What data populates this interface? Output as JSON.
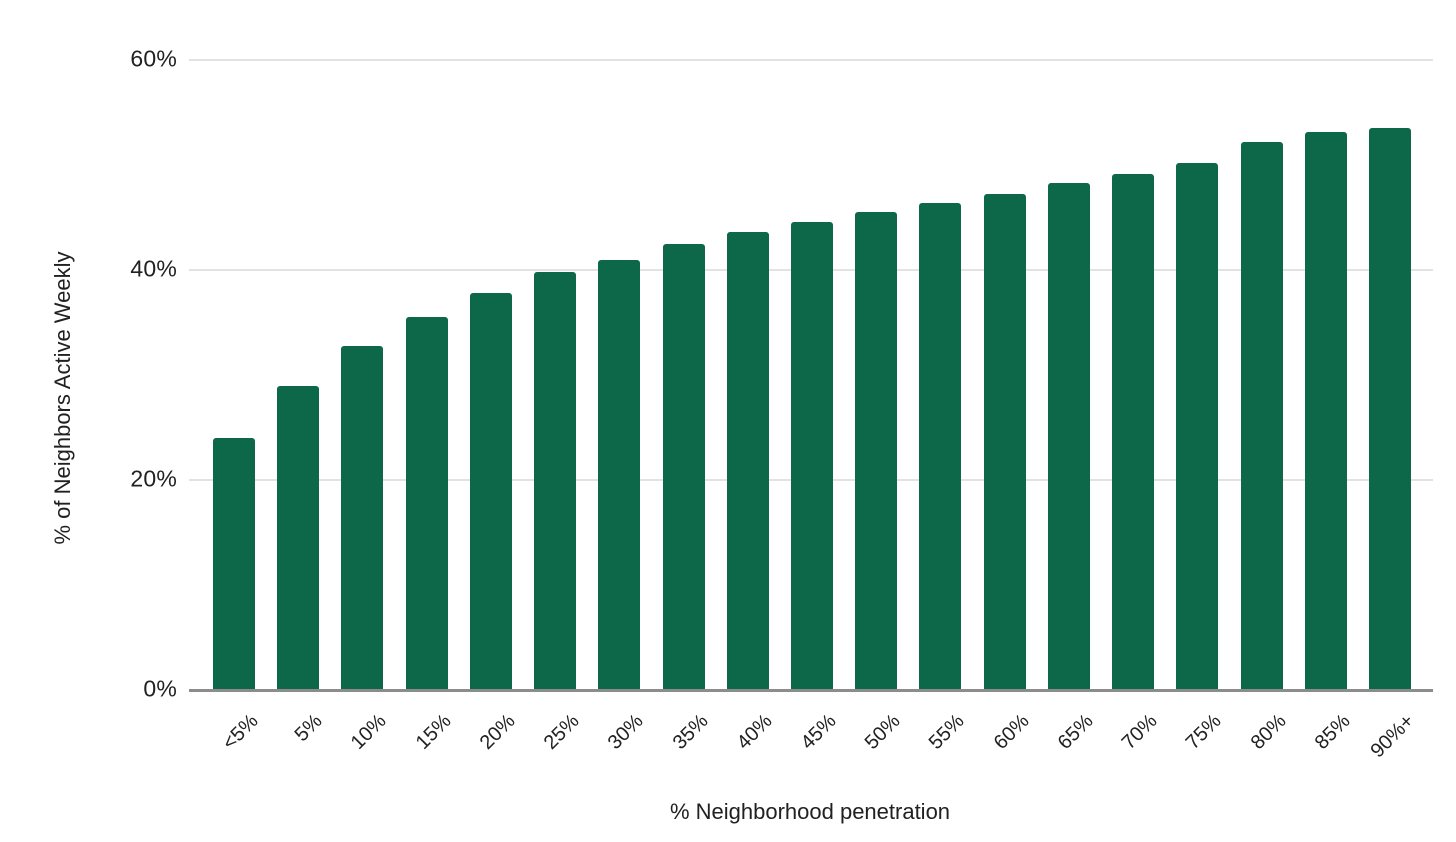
{
  "chart_data": {
    "type": "bar",
    "title": "",
    "xlabel": "% Neighborhood penetration",
    "ylabel": "% of Neighbors Active Weekly",
    "categories": [
      "<5%",
      "5%",
      "10%",
      "15%",
      "20%",
      "25%",
      "30%",
      "35%",
      "40%",
      "45%",
      "50%",
      "55%",
      "60%",
      "65%",
      "70%",
      "75%",
      "80%",
      "85%",
      "90%+"
    ],
    "values": [
      24,
      29,
      32.8,
      35.5,
      37.8,
      39.8,
      41,
      42.5,
      43.6,
      44.6,
      45.5,
      46.4,
      47.2,
      48.3,
      49.1,
      50.2,
      52.2,
      53.1,
      53.5
    ],
    "ytick_values": [
      0,
      20,
      40,
      60
    ],
    "ytick_labels": [
      "0%",
      "20%",
      "40%",
      "60%"
    ],
    "ylim": [
      0,
      60
    ],
    "grid": true,
    "legend_position": "none",
    "colors": {
      "bar": "#0d6849",
      "gridline": "#e2e2e2",
      "axis_line": "#8c8c8c",
      "text": "#212121",
      "background": "#ffffff"
    }
  }
}
